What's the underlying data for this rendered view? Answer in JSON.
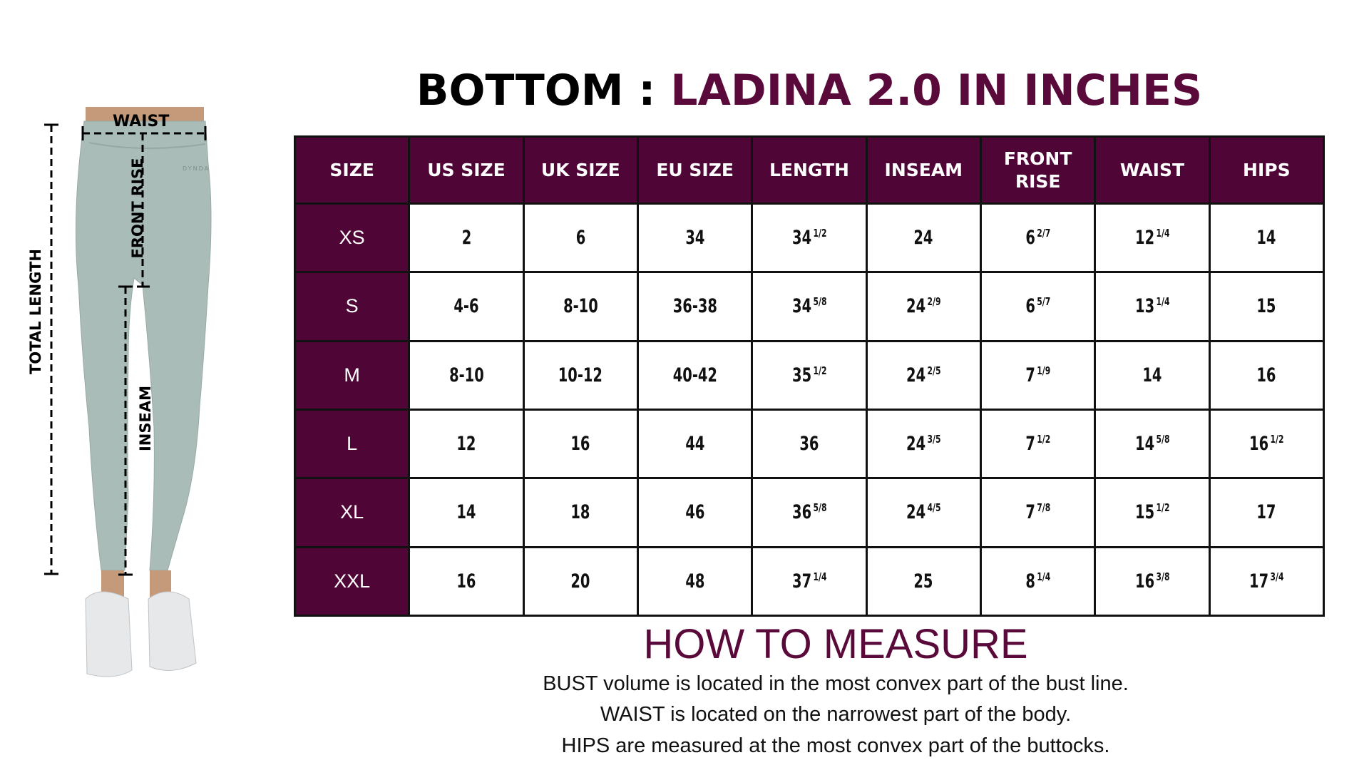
{
  "title": {
    "prefix": "BOTTOM : ",
    "accent": "LADINA 2.0 IN INCHES"
  },
  "colors": {
    "accent": "#4f0536",
    "pants": "#a9bcb8",
    "skin": "#c59a7a"
  },
  "figure": {
    "labels": {
      "waist": "WAIST",
      "front_rise": "FRONT RISE",
      "total_length": "TOTAL LENGTH",
      "inseam": "INSEAM"
    },
    "brand_logo": "DYNDA"
  },
  "table": {
    "headers": [
      "SIZE",
      "US SIZE",
      "UK SIZE",
      "EU SIZE",
      "LENGTH",
      "INSEAM",
      "FRONT RISE",
      "WAIST",
      "HIPS"
    ],
    "rows": [
      [
        {
          "v": "XS"
        },
        {
          "v": "2"
        },
        {
          "v": "6"
        },
        {
          "v": "34"
        },
        {
          "v": "34",
          "f": "1/2"
        },
        {
          "v": "24"
        },
        {
          "v": "6",
          "f": "2/7"
        },
        {
          "v": "12",
          "f": "1/4"
        },
        {
          "v": "14"
        }
      ],
      [
        {
          "v": "S"
        },
        {
          "v": "4-6"
        },
        {
          "v": "8-10"
        },
        {
          "v": "36-38"
        },
        {
          "v": "34",
          "f": "5/8"
        },
        {
          "v": "24",
          "f": "2/9"
        },
        {
          "v": "6",
          "f": "5/7"
        },
        {
          "v": "13",
          "f": "1/4"
        },
        {
          "v": "15"
        }
      ],
      [
        {
          "v": "M"
        },
        {
          "v": "8-10"
        },
        {
          "v": "10-12"
        },
        {
          "v": "40-42"
        },
        {
          "v": "35",
          "f": "1/2"
        },
        {
          "v": "24",
          "f": "2/5"
        },
        {
          "v": "7",
          "f": "1/9"
        },
        {
          "v": "14"
        },
        {
          "v": "16"
        }
      ],
      [
        {
          "v": "L"
        },
        {
          "v": "12"
        },
        {
          "v": "16"
        },
        {
          "v": "44"
        },
        {
          "v": "36"
        },
        {
          "v": "24",
          "f": "3/5"
        },
        {
          "v": "7",
          "f": "1/2"
        },
        {
          "v": "14",
          "f": "5/8"
        },
        {
          "v": "16",
          "f": "1/2"
        }
      ],
      [
        {
          "v": "XL"
        },
        {
          "v": "14"
        },
        {
          "v": "18"
        },
        {
          "v": "46"
        },
        {
          "v": "36",
          "f": "5/8"
        },
        {
          "v": "24",
          "f": "4/5"
        },
        {
          "v": "7",
          "f": "7/8"
        },
        {
          "v": "15",
          "f": "1/2"
        },
        {
          "v": "17"
        }
      ],
      [
        {
          "v": "XXL"
        },
        {
          "v": "16"
        },
        {
          "v": "20"
        },
        {
          "v": "48"
        },
        {
          "v": "37",
          "f": "1/4"
        },
        {
          "v": "25"
        },
        {
          "v": "8",
          "f": "1/4"
        },
        {
          "v": "16",
          "f": "3/8"
        },
        {
          "v": "17",
          "f": "3/4"
        }
      ]
    ]
  },
  "how_to_measure": {
    "heading": "HOW TO MEASURE",
    "lines": [
      "BUST volume is located in the most convex part of the bust line.",
      "WAIST is located on the narrowest part of the body.",
      "HIPS are measured at the most convex part of the buttocks."
    ]
  }
}
